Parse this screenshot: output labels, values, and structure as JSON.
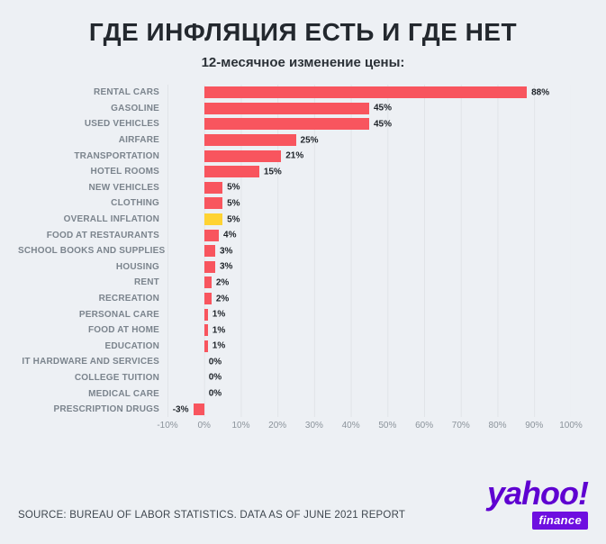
{
  "page": {
    "title": "ГДЕ ИНФЛЯЦИЯ ЕСТЬ И ГДЕ НЕТ",
    "subtitle": "12-месячное изменение цены:",
    "source": "SOURCE: BUREAU OF LABOR STATISTICS. DATA AS OF JUNE 2021 REPORT",
    "logo": {
      "brand": "yahoo!",
      "sub": "finance"
    }
  },
  "colors": {
    "background": "#edf0f4",
    "bar": "#f8555e",
    "highlight_bar": "#ffd333",
    "title_text": "#23282e",
    "category_text": "#7b848d",
    "value_text": "#1d2228",
    "brand_purple": "#5f01d1"
  },
  "chart_data": {
    "type": "bar",
    "orientation": "horizontal",
    "title": "ГДЕ ИНФЛЯЦИЯ ЕСТЬ И ГДЕ НЕТ",
    "subtitle": "12-месячное изменение цены:",
    "xlabel": "",
    "ylabel": "",
    "grid": true,
    "xlim": [
      -10,
      100
    ],
    "x_ticks": [
      "-10%",
      "0%",
      "10%",
      "20%",
      "30%",
      "40%",
      "50%",
      "60%",
      "70%",
      "80%",
      "90%",
      "100%"
    ],
    "categories": [
      "RENTAL CARS",
      "GASOLINE",
      "USED VEHICLES",
      "AIRFARE",
      "TRANSPORTATION",
      "HOTEL ROOMS",
      "NEW VEHICLES",
      "CLOTHING",
      "OVERALL INFLATION",
      "FOOD AT RESTAURANTS",
      "SCHOOL BOOKS AND SUPPLIES",
      "HOUSING",
      "RENT",
      "RECREATION",
      "PERSONAL CARE",
      "FOOD AT HOME",
      "EDUCATION",
      "IT HARDWARE AND SERVICES",
      "COLLEGE TUITION",
      "MEDICAL CARE",
      "PRESCRIPTION DRUGS"
    ],
    "values": [
      88,
      45,
      45,
      25,
      21,
      15,
      5,
      5,
      5,
      4,
      3,
      3,
      2,
      2,
      1,
      1,
      1,
      0,
      0,
      0,
      -3
    ],
    "value_labels": [
      "88%",
      "45%",
      "45%",
      "25%",
      "21%",
      "15%",
      "5%",
      "5%",
      "5%",
      "4%",
      "3%",
      "3%",
      "2%",
      "2%",
      "1%",
      "1%",
      "1%",
      "0%",
      "0%",
      "0%",
      "-3%"
    ],
    "highlight_category": "OVERALL INFLATION",
    "highlight_index": 8
  }
}
